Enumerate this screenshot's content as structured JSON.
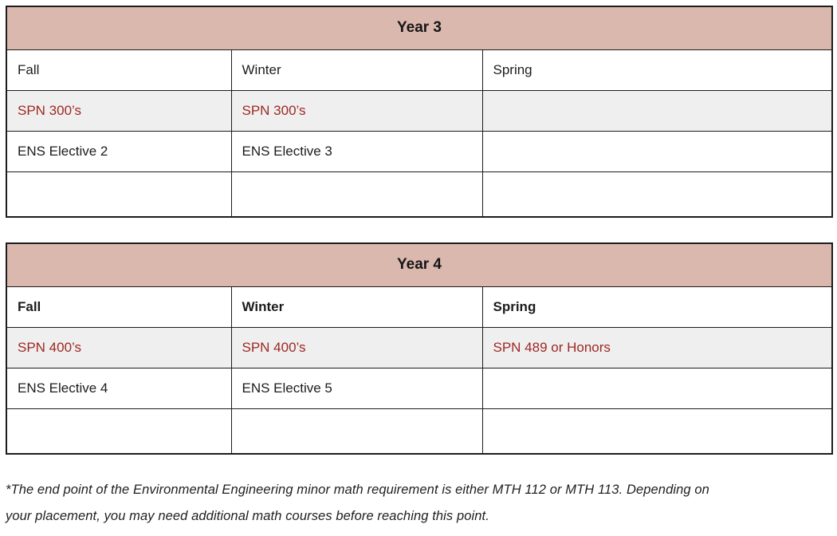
{
  "colors": {
    "header_bg": "#dbb8ae",
    "row_alt_bg": "#efefef",
    "accent_red": "#9e2822",
    "border": "#1c1c1c"
  },
  "tables": [
    {
      "title": "Year 3",
      "columns": [
        "Fall",
        "Winter",
        "Spring"
      ],
      "columns_bold": false,
      "rows": [
        {
          "cells": [
            "SPN 300’s",
            "SPN 300’s",
            ""
          ],
          "highlight": true
        },
        {
          "cells": [
            "ENS Elective 2",
            "ENS Elective 3",
            ""
          ],
          "highlight": false
        },
        {
          "cells": [
            "",
            "",
            ""
          ],
          "highlight": false
        }
      ]
    },
    {
      "title": "Year 4",
      "columns": [
        "Fall",
        "Winter",
        "Spring"
      ],
      "columns_bold": true,
      "rows": [
        {
          "cells": [
            "SPN 400’s",
            "SPN 400’s",
            "SPN 489 or Honors"
          ],
          "highlight": true
        },
        {
          "cells": [
            "ENS Elective 4",
            "ENS Elective 5",
            ""
          ],
          "highlight": false
        },
        {
          "cells": [
            "",
            "",
            ""
          ],
          "highlight": false
        }
      ]
    }
  ],
  "footnote": {
    "lines": [
      "*The end point of the Environmental Engineering minor math requirement is either MTH 112 or MTH 113. Depending on",
      "your placement, you may need additional math courses before reaching this point."
    ]
  }
}
